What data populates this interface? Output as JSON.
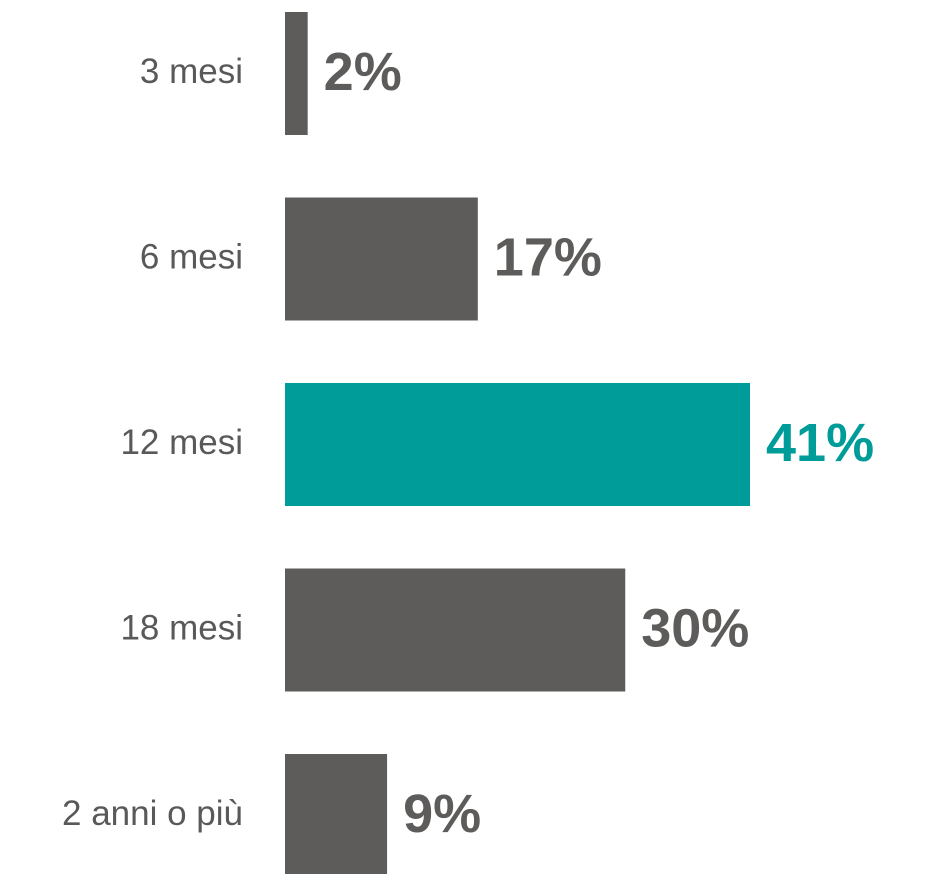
{
  "chart_data": {
    "type": "bar",
    "orientation": "horizontal",
    "categories": [
      "3 mesi",
      "6 mesi",
      "12 mesi",
      "18 mesi",
      "2 anni o più"
    ],
    "values": [
      2,
      17,
      41,
      30,
      9
    ],
    "value_labels": [
      "2%",
      "17%",
      "41%",
      "30%",
      "9%"
    ],
    "colors": [
      "#5d5c5a",
      "#5d5c5a",
      "#009c9a",
      "#5d5c5a",
      "#5d5c5a"
    ]
  }
}
